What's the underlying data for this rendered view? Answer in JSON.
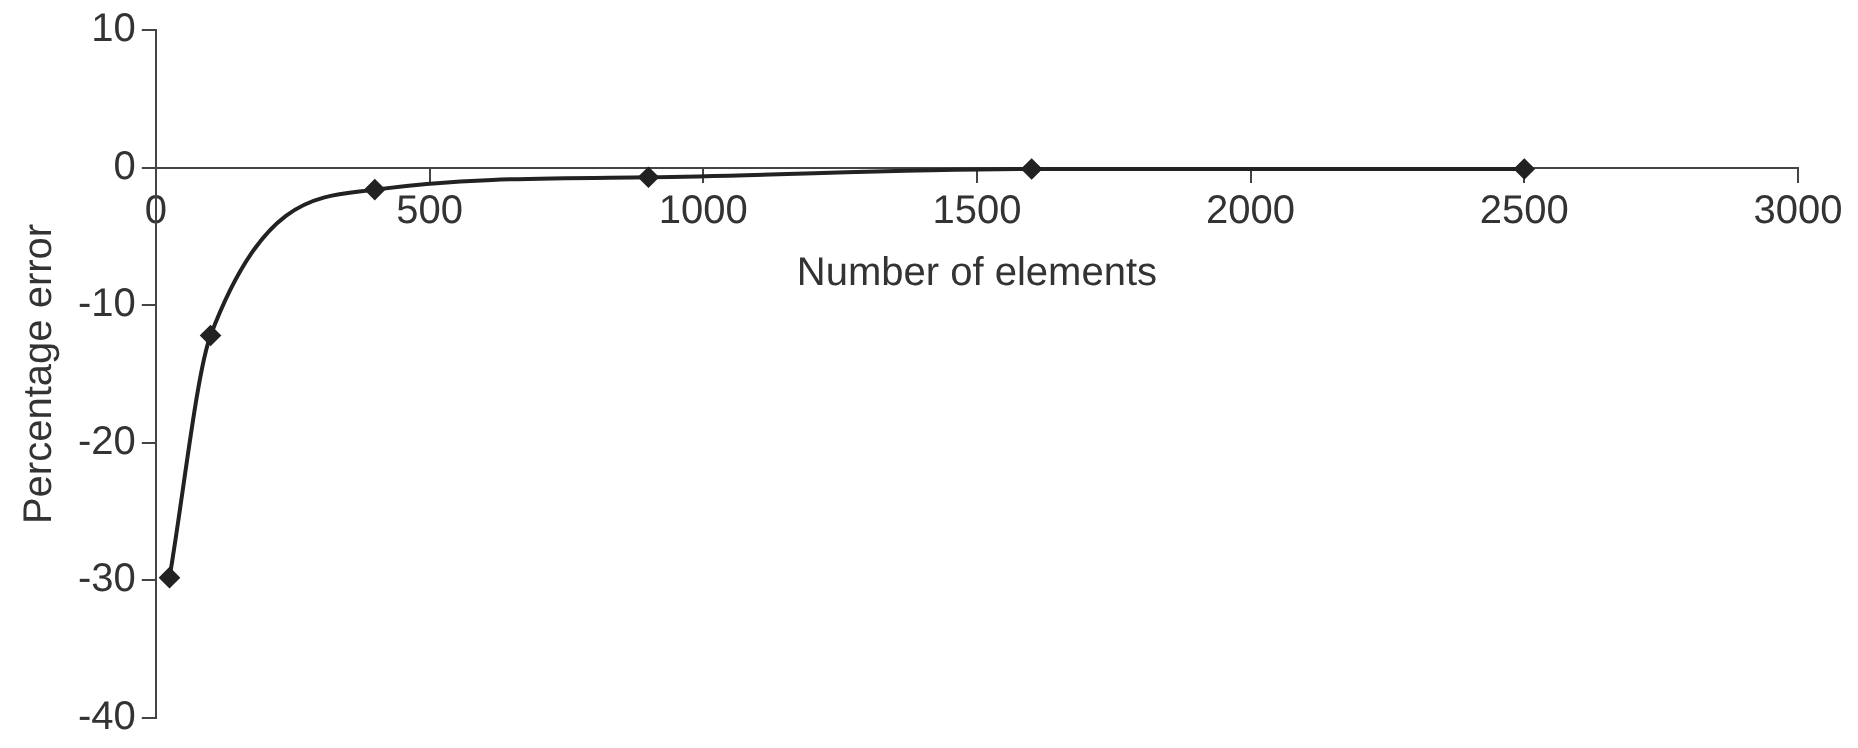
{
  "chart_data": {
    "type": "line",
    "xlabel": "Number of elements",
    "ylabel": "Percentage error",
    "x": [
      25,
      100,
      400,
      900,
      1600,
      2500
    ],
    "series": [
      {
        "color": "#222222",
        "values": [
          -29.8,
          -12.2,
          -1.6,
          -0.7,
          -0.1,
          -0.1
        ]
      }
    ],
    "xlim": [
      0,
      3000
    ],
    "xticks": [
      0,
      500,
      1000,
      1500,
      2000,
      2500,
      3000
    ],
    "ylim": [
      -40,
      10
    ],
    "yticks": [
      -40,
      -30,
      -20,
      -10,
      0,
      10
    ],
    "grid": false,
    "legend": false,
    "marker": "diamond",
    "line_style": "solid"
  }
}
